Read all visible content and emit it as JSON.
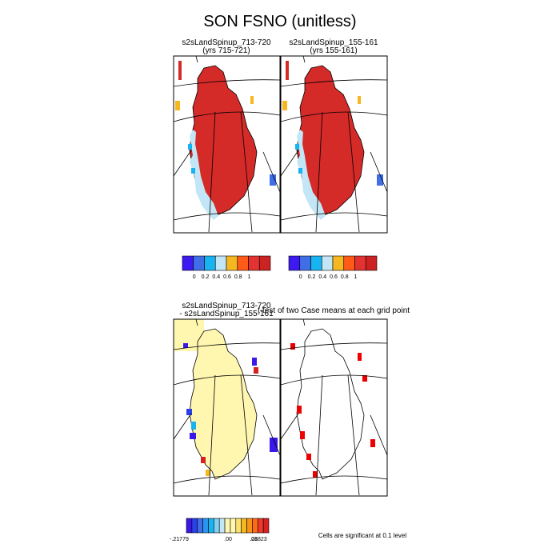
{
  "figure": {
    "title": "SON FSNO (unitless)"
  },
  "chart_data": [
    {
      "type": "heatmap",
      "title": "s2sLandSpinup_713-720",
      "subtitle": "(yrs 715-721)",
      "colorbar": {
        "labels": [
          "0",
          "0.2",
          "0.4",
          "0.6",
          "0.8",
          "1"
        ],
        "colors": [
          "#3d1af2",
          "#3f6ee6",
          "#18b4f2",
          "#c2e6f5",
          "#f5b820",
          "#ff5a18",
          "#e23232",
          "#cc2222"
        ]
      }
    },
    {
      "type": "heatmap",
      "title": "s2sLandSpinup_155-161",
      "subtitle": "(yrs 155-161)",
      "colorbar": {
        "labels": [
          "0",
          "0.2",
          "0.4",
          "0.6",
          "0.8",
          "1"
        ],
        "colors": [
          "#3d1af2",
          "#3f6ee6",
          "#18b4f2",
          "#c2e6f5",
          "#f5b820",
          "#ff5a18",
          "#e23232",
          "#cc2222"
        ]
      }
    },
    {
      "type": "heatmap",
      "title": "s2sLandSpinup_713-720",
      "subtitle": "- s2sLandSpinup_155-161",
      "colorbar": {
        "labels": [
          "-.21779",
          ".00",
          ".01",
          ".28823"
        ],
        "colors": [
          "#3a18e8",
          "#2a40e8",
          "#3f6ee6",
          "#2896f0",
          "#18b4f2",
          "#7fd0f2",
          "#c2e6f5",
          "#fff7b0",
          "#fff7b0",
          "#fce070",
          "#f5b820",
          "#f89418",
          "#ff6a18",
          "#ee3a2a",
          "#d82020"
        ]
      }
    },
    {
      "type": "heatmap",
      "title": "t-test of two Case means at each grid point",
      "note": "Cells are significant at 0.1 level",
      "colors": {
        "significant": "#ee0000"
      }
    }
  ]
}
